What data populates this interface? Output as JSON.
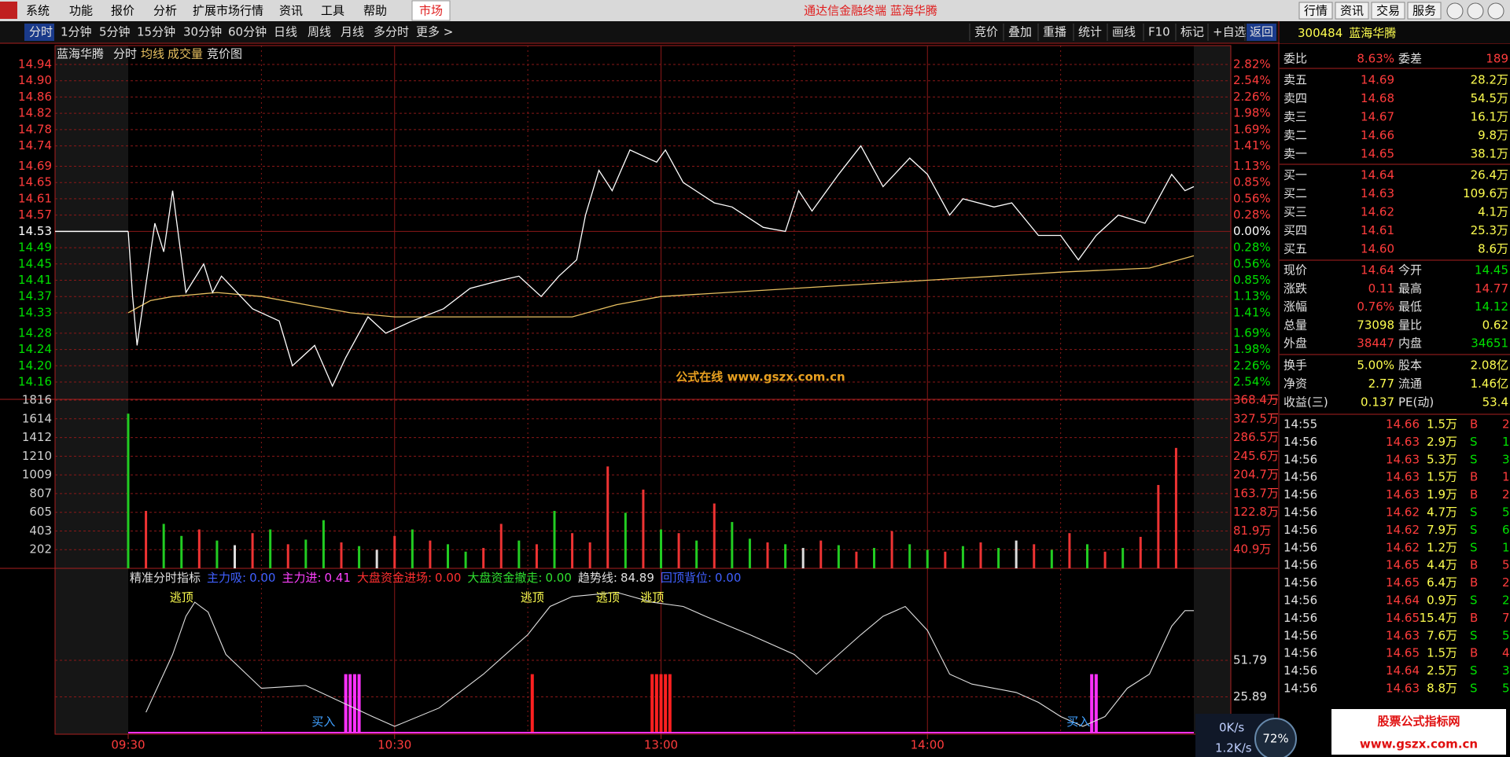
{
  "menu": {
    "items": [
      "系统",
      "功能",
      "报价",
      "分析",
      "扩展市场行情",
      "资讯",
      "工具",
      "帮助"
    ],
    "market": "市场",
    "title": "通达信金融终端 蓝海华腾",
    "buttons": [
      "行情",
      "资讯",
      "交易",
      "服务"
    ]
  },
  "toolbar": {
    "periods": [
      "分时",
      "1分钟",
      "5分钟",
      "15分钟",
      "30分钟",
      "60分钟",
      "日线",
      "周线",
      "月线",
      "多分时",
      "更多 >"
    ],
    "tools": [
      "竞价",
      "叠加",
      "重播",
      "统计",
      "画线",
      "F10",
      "标记",
      "+自选",
      "返回"
    ]
  },
  "chart_header": [
    "蓝海华腾",
    "分时",
    "均线",
    "成交量",
    "竞价图"
  ],
  "price_chart": {
    "type": "line",
    "ylim": [
      14.16,
      14.94
    ],
    "xlim": [
      0,
      240
    ],
    "prev_close": 14.53,
    "yticks": [
      {
        "value": 14.94,
        "label": "14.94",
        "pct": "2.82%"
      },
      {
        "value": 14.9,
        "label": "14.90",
        "pct": "2.54%"
      },
      {
        "value": 14.86,
        "label": "14.86",
        "pct": "2.26%"
      },
      {
        "value": 14.82,
        "label": "14.82",
        "pct": "1.98%"
      },
      {
        "value": 14.78,
        "label": "14.78",
        "pct": "1.69%"
      },
      {
        "value": 14.74,
        "label": "14.74",
        "pct": "1.41%"
      },
      {
        "value": 14.69,
        "label": "14.69",
        "pct": "1.13%"
      },
      {
        "value": 14.65,
        "label": "14.65",
        "pct": "0.85%"
      },
      {
        "value": 14.61,
        "label": "14.61",
        "pct": "0.56%"
      },
      {
        "value": 14.57,
        "label": "14.57",
        "pct": "0.28%"
      },
      {
        "value": 14.53,
        "label": "14.53",
        "pct": "0.00%"
      },
      {
        "value": 14.49,
        "label": "14.49",
        "pct": "0.28%"
      },
      {
        "value": 14.45,
        "label": "14.45",
        "pct": "0.56%"
      },
      {
        "value": 14.41,
        "label": "14.41",
        "pct": "0.85%"
      },
      {
        "value": 14.37,
        "label": "14.37",
        "pct": "1.13%"
      },
      {
        "value": 14.33,
        "label": "14.33",
        "pct": "1.41%"
      },
      {
        "value": 14.28,
        "label": "14.28",
        "pct": "1.69%"
      },
      {
        "value": 14.24,
        "label": "14.24",
        "pct": "1.98%"
      },
      {
        "value": 14.2,
        "label": "14.20",
        "pct": "2.26%"
      },
      {
        "value": 14.16,
        "label": "14.16",
        "pct": "2.54%"
      }
    ],
    "xticks": [
      {
        "value": 0,
        "label": "09:30"
      },
      {
        "value": 60,
        "label": "10:30"
      },
      {
        "value": 120,
        "label": "13:00"
      },
      {
        "value": 180,
        "label": "14:00"
      }
    ],
    "price": {
      "color": "#ffffff",
      "x": [
        0,
        1,
        2,
        6,
        8,
        10,
        13,
        17,
        19,
        21,
        28,
        34,
        37,
        42,
        46,
        49,
        54,
        58,
        64,
        71,
        77,
        84,
        88,
        93,
        97,
        101,
        103,
        106,
        109,
        113,
        119,
        121,
        125,
        132,
        136,
        143,
        148,
        151,
        154,
        160,
        165,
        170,
        176,
        180,
        185,
        188,
        195,
        199,
        205,
        210,
        214,
        218,
        223,
        229,
        235,
        238,
        240
      ],
      "values": [
        14.53,
        14.37,
        14.25,
        14.55,
        14.48,
        14.63,
        14.38,
        14.45,
        14.38,
        14.42,
        14.34,
        14.31,
        14.2,
        14.25,
        14.15,
        14.22,
        14.32,
        14.28,
        14.31,
        14.34,
        14.39,
        14.41,
        14.42,
        14.37,
        14.42,
        14.46,
        14.57,
        14.68,
        14.63,
        14.73,
        14.7,
        14.73,
        14.65,
        14.6,
        14.59,
        14.54,
        14.53,
        14.63,
        14.58,
        14.67,
        14.74,
        14.64,
        14.71,
        14.67,
        14.57,
        14.61,
        14.59,
        14.6,
        14.52,
        14.52,
        14.46,
        14.52,
        14.57,
        14.55,
        14.67,
        14.63,
        14.64
      ]
    },
    "average": {
      "color": "#e8c060",
      "x": [
        0,
        5,
        10,
        20,
        30,
        40,
        50,
        60,
        80,
        100,
        110,
        120,
        150,
        180,
        210,
        230,
        240
      ],
      "values": [
        14.33,
        14.36,
        14.37,
        14.38,
        14.37,
        14.35,
        14.33,
        14.32,
        14.32,
        14.32,
        14.35,
        14.37,
        14.39,
        14.41,
        14.43,
        14.44,
        14.47
      ]
    },
    "watermark": "公式在线  www.gszx.com.cn"
  },
  "volume_chart": {
    "type": "bar",
    "ylim": [
      0,
      1816
    ],
    "yticks": [
      {
        "value": 202,
        "amount": "40.9万"
      },
      {
        "value": 403,
        "amount": "81.9万"
      },
      {
        "value": 605,
        "amount": "122.8万"
      },
      {
        "value": 807,
        "amount": "163.7万"
      },
      {
        "value": 1009,
        "amount": "204.7万"
      },
      {
        "value": 1210,
        "amount": "245.6万"
      },
      {
        "value": 1412,
        "amount": "286.5万"
      },
      {
        "value": 1614,
        "amount": "327.5万"
      },
      {
        "value": 1816,
        "amount": "368.4万"
      }
    ],
    "x": [
      0,
      4,
      8,
      12,
      16,
      20,
      24,
      28,
      32,
      36,
      40,
      44,
      48,
      52,
      56,
      60,
      64,
      68,
      72,
      76,
      80,
      84,
      88,
      92,
      96,
      100,
      104,
      108,
      112,
      116,
      120,
      124,
      128,
      132,
      136,
      140,
      144,
      148,
      152,
      156,
      160,
      164,
      168,
      172,
      176,
      180,
      184,
      188,
      192,
      196,
      200,
      204,
      208,
      212,
      216,
      220,
      224,
      228,
      232,
      236
    ],
    "values": [
      1670,
      620,
      480,
      350,
      420,
      300,
      250,
      380,
      420,
      260,
      310,
      520,
      280,
      240,
      200,
      350,
      420,
      300,
      260,
      180,
      220,
      480,
      300,
      260,
      620,
      380,
      280,
      1100,
      600,
      850,
      420,
      380,
      300,
      700,
      500,
      320,
      280,
      260,
      220,
      300,
      250,
      180,
      220,
      400,
      260,
      200,
      180,
      240,
      280,
      220,
      300,
      260,
      200,
      380,
      260,
      180,
      220,
      340,
      900,
      1300
    ],
    "colors": [
      "#22cc22",
      "#ee3333",
      "#22cc22",
      "#22cc22",
      "#ee3333",
      "#22cc22",
      "#dddddd",
      "#ee3333",
      "#22cc22",
      "#ee3333",
      "#22cc22",
      "#22cc22",
      "#ee3333",
      "#22cc22",
      "#dddddd",
      "#ee3333",
      "#22cc22",
      "#ee3333",
      "#22cc22",
      "#22cc22",
      "#ee3333",
      "#ee3333",
      "#22cc22",
      "#ee3333",
      "#22cc22",
      "#ee3333",
      "#ee3333",
      "#ee3333",
      "#22cc22",
      "#ee3333",
      "#22cc22",
      "#ee3333",
      "#22cc22",
      "#ee3333",
      "#22cc22",
      "#22cc22",
      "#ee3333",
      "#22cc22",
      "#dddddd",
      "#ee3333",
      "#22cc22",
      "#ee3333",
      "#22cc22",
      "#ee3333",
      "#22cc22",
      "#22cc22",
      "#ee3333",
      "#22cc22",
      "#ee3333",
      "#22cc22",
      "#dddddd",
      "#ee3333",
      "#22cc22",
      "#ee3333",
      "#22cc22",
      "#ee3333",
      "#22cc22",
      "#ee3333",
      "#ee3333",
      "#ee3333"
    ]
  },
  "indicator": {
    "type": "line",
    "title": "精准分时指标",
    "ylim": [
      0,
      117
    ],
    "yticks": [
      25.89,
      51.79
    ],
    "fields": [
      {
        "name": "主力吸:",
        "value": "0.00",
        "color": "#4060ff"
      },
      {
        "name": "主力进:",
        "value": "0.41",
        "color": "#ff40ff"
      },
      {
        "name": "大盘资金进场:",
        "value": "0.00",
        "color": "#ff3030"
      },
      {
        "name": "大盘资金撤走:",
        "value": "0.00",
        "color": "#30e030"
      },
      {
        "name": "趋势线:",
        "value": "84.89",
        "color": "#e0e0e0"
      },
      {
        "name": "回顶背位:",
        "value": "0.00",
        "color": "#4060ff"
      }
    ],
    "x": [
      4,
      10,
      13,
      15,
      18,
      22,
      30,
      40,
      55,
      60,
      70,
      80,
      90,
      95,
      100,
      110,
      118,
      125,
      130,
      140,
      150,
      155,
      160,
      165,
      170,
      175,
      180,
      185,
      190,
      195,
      200,
      205,
      210,
      215,
      220,
      225,
      230,
      235,
      238,
      240
    ],
    "values": [
      15,
      56,
      83,
      93,
      86,
      56,
      32,
      34,
      12,
      5,
      18,
      42,
      70,
      90,
      97,
      100,
      93,
      90,
      83,
      70,
      56,
      42,
      56,
      70,
      83,
      90,
      73,
      42,
      35,
      32,
      29,
      22,
      12,
      5,
      12,
      32,
      42,
      76,
      87,
      87
    ],
    "signals": [
      {
        "x": 49,
        "value": 42,
        "color": "#ff30ff"
      },
      {
        "x": 50,
        "value": 42,
        "color": "#ff30ff"
      },
      {
        "x": 51,
        "value": 42,
        "color": "#ff30ff"
      },
      {
        "x": 52,
        "value": 42,
        "color": "#ff30ff"
      },
      {
        "x": 91,
        "value": 42,
        "color": "#ff2020"
      },
      {
        "x": 118,
        "value": 42,
        "color": "#ff2020"
      },
      {
        "x": 119,
        "value": 42,
        "color": "#ff2020"
      },
      {
        "x": 120,
        "value": 42,
        "color": "#ff2020"
      },
      {
        "x": 121,
        "value": 42,
        "color": "#ff2020"
      },
      {
        "x": 122,
        "value": 42,
        "color": "#ff2020"
      },
      {
        "x": 217,
        "value": 42,
        "color": "#ff30ff"
      },
      {
        "x": 218,
        "value": 42,
        "color": "#ff30ff"
      }
    ],
    "annotations": [
      {
        "text": "逃顶",
        "x": 12,
        "y": 96
      },
      {
        "text": "逃顶",
        "x": 91,
        "y": 96
      },
      {
        "text": "逃顶",
        "x": 108,
        "y": 96
      },
      {
        "text": "逃顶",
        "x": 118,
        "y": 96
      },
      {
        "text": "买入",
        "x": 44,
        "y": 8
      },
      {
        "text": "买入",
        "x": 214,
        "y": 8
      }
    ]
  },
  "quote": {
    "code": "300484",
    "name": "蓝海华腾",
    "ratio": {
      "label": "委比",
      "value": "8.63%",
      "label2": "委差",
      "value2": "189"
    },
    "asks": [
      [
        "卖五",
        "14.69",
        "28.2万"
      ],
      [
        "卖四",
        "14.68",
        "54.5万"
      ],
      [
        "卖三",
        "14.67",
        "16.1万"
      ],
      [
        "卖二",
        "14.66",
        "9.8万"
      ],
      [
        "卖一",
        "14.65",
        "38.1万"
      ]
    ],
    "bids": [
      [
        "买一",
        "14.64",
        "26.4万"
      ],
      [
        "买二",
        "14.63",
        "109.6万"
      ],
      [
        "买三",
        "14.62",
        "4.1万"
      ],
      [
        "买四",
        "14.61",
        "25.3万"
      ],
      [
        "买五",
        "14.60",
        "8.6万"
      ]
    ],
    "stats": [
      {
        "label": "现价",
        "value": "14.64",
        "color": "#ff3c3c",
        "label2": "今开",
        "value2": "14.45",
        "color2": "#00e000"
      },
      {
        "label": "涨跌",
        "value": "0.11",
        "color": "#ff3c3c",
        "label2": "最高",
        "value2": "14.77",
        "color2": "#ff3c3c"
      },
      {
        "label": "涨幅",
        "value": "0.76%",
        "color": "#ff3c3c",
        "label2": "最低",
        "value2": "14.12",
        "color2": "#00e000"
      },
      {
        "label": "总量",
        "value": "73098",
        "color": "#ffff50",
        "label2": "量比",
        "value2": "0.62",
        "color2": "#ffff50"
      },
      {
        "label": "外盘",
        "value": "38447",
        "color": "#ff3c3c",
        "label2": "内盘",
        "value2": "34651",
        "color2": "#00e000"
      }
    ],
    "stats2": [
      {
        "label": "换手",
        "value": "5.00%",
        "color": "#ffff50",
        "label2": "股本",
        "value2": "2.08亿",
        "color2": "#ffff50"
      },
      {
        "label": "净资",
        "value": "2.77",
        "color": "#ffff50",
        "label2": "流通",
        "value2": "1.46亿",
        "color2": "#ffff50"
      },
      {
        "label": "收益(三)",
        "value": "0.137",
        "color": "#ffff50",
        "label2": "PE(动)",
        "value2": "53.4",
        "color2": "#ffff50"
      }
    ],
    "trades": [
      [
        "14:55",
        "14.66",
        "1.5万",
        "B",
        "2"
      ],
      [
        "14:56",
        "14.63",
        "2.9万",
        "S",
        "1"
      ],
      [
        "14:56",
        "14.63",
        "5.3万",
        "S",
        "3"
      ],
      [
        "14:56",
        "14.63",
        "1.5万",
        "B",
        "1"
      ],
      [
        "14:56",
        "14.63",
        "1.9万",
        "B",
        "2"
      ],
      [
        "14:56",
        "14.62",
        "4.7万",
        "S",
        "5"
      ],
      [
        "14:56",
        "14.62",
        "7.9万",
        "S",
        "6"
      ],
      [
        "14:56",
        "14.62",
        "1.2万",
        "S",
        "1"
      ],
      [
        "14:56",
        "14.65",
        "4.4万",
        "B",
        "5"
      ],
      [
        "14:56",
        "14.65",
        "6.4万",
        "B",
        "2"
      ],
      [
        "14:56",
        "14.64",
        "0.9万",
        "S",
        "2"
      ],
      [
        "14:56",
        "14.65",
        "15.4万",
        "B",
        "7"
      ],
      [
        "14:56",
        "14.63",
        "7.6万",
        "S",
        "5"
      ],
      [
        "14:56",
        "14.65",
        "1.5万",
        "B",
        "4"
      ],
      [
        "14:56",
        "14.64",
        "2.5万",
        "S",
        "3"
      ],
      [
        "14:56",
        "14.63",
        "8.8万",
        "S",
        "5"
      ]
    ]
  },
  "status": {
    "upload": "0K/s",
    "download": "1.2K/s",
    "gauge": "72%"
  },
  "footer_watermark": {
    "title": "股票公式指标网",
    "url": "www.gszx.com.cn"
  }
}
